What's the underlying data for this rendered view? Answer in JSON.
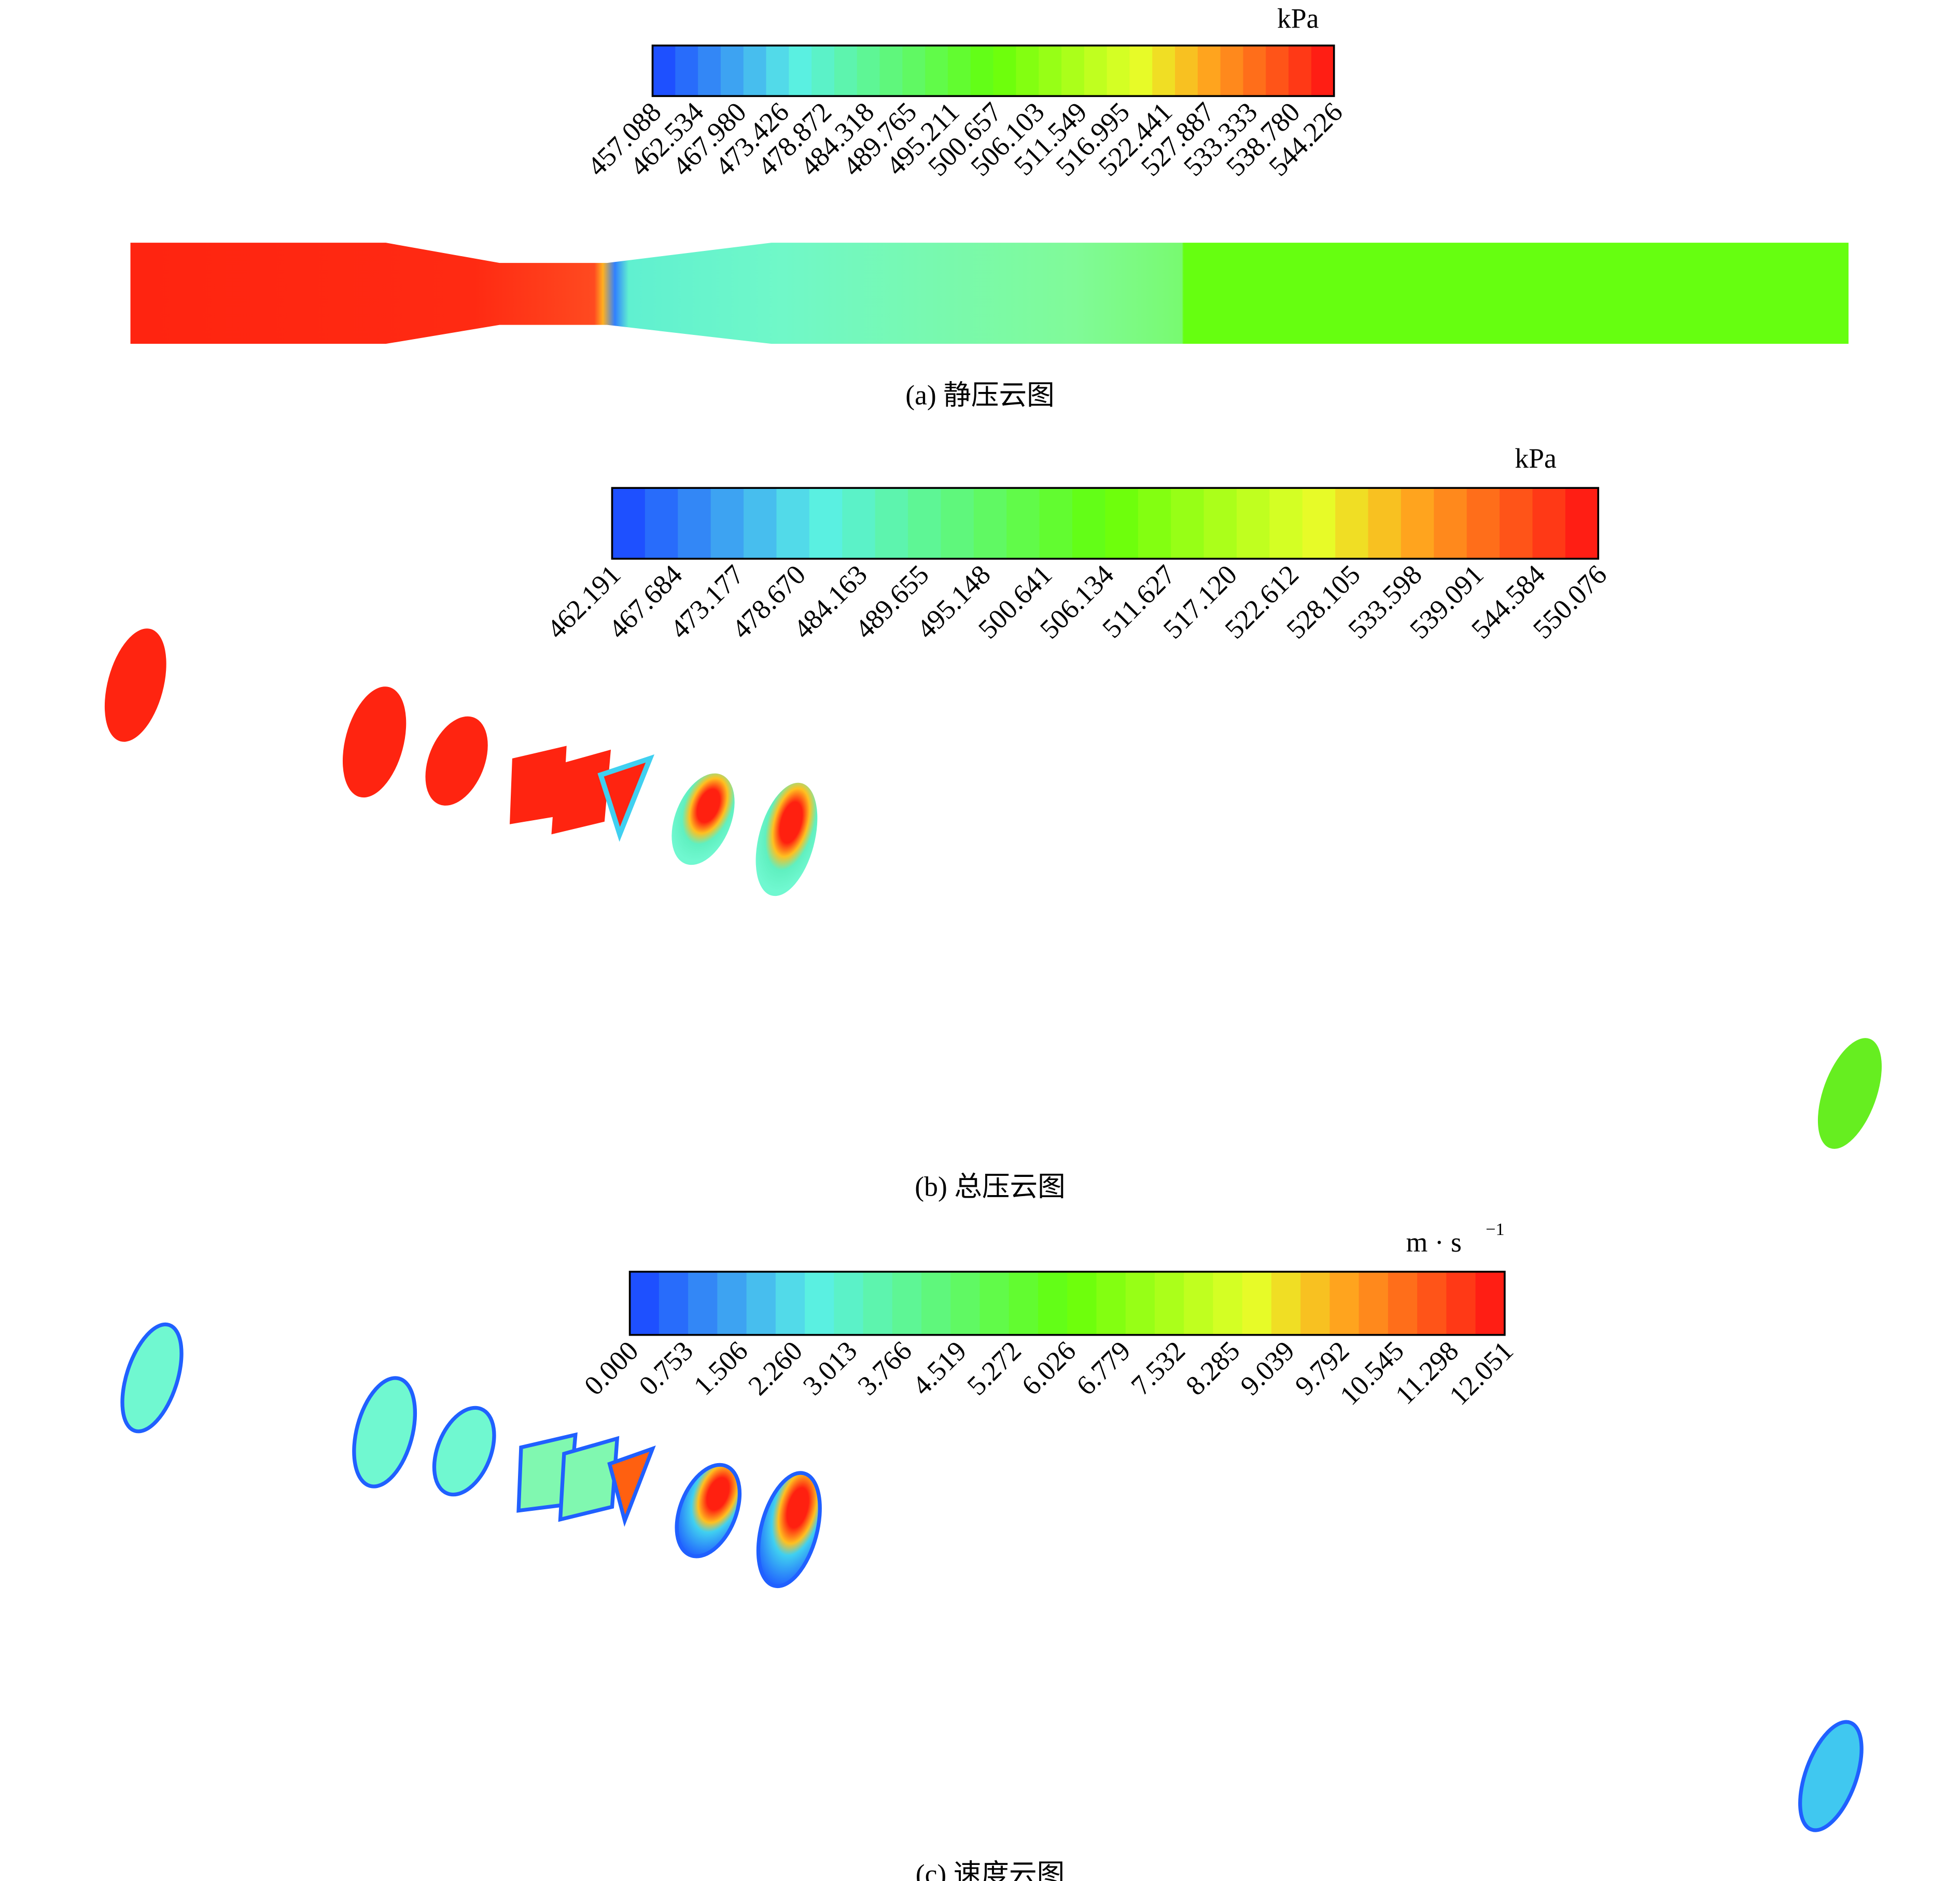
{
  "panels": [
    {
      "unit": "kPa",
      "labels": [
        "457.088",
        "462.534",
        "467.980",
        "473.426",
        "478.872",
        "484.318",
        "489.765",
        "495.211",
        "500.657",
        "506.103",
        "511.549",
        "516.995",
        "522.441",
        "527.887",
        "533.333",
        "538.780",
        "544.226"
      ],
      "caption": "(a) 静压云图"
    },
    {
      "unit": "kPa",
      "labels": [
        "462.191",
        "467.684",
        "473.177",
        "478.670",
        "484.163",
        "489.655",
        "495.148",
        "500.641",
        "506.134",
        "511.627",
        "517.120",
        "522.612",
        "528.105",
        "533.598",
        "539.091",
        "544.584",
        "550.076"
      ],
      "caption": "(b) 总压云图"
    },
    {
      "unit": "m · s",
      "unit_exponent": "−1",
      "labels": [
        "0.000",
        "0.753",
        "1.506",
        "2.260",
        "3.013",
        "3.766",
        "4.519",
        "5.272",
        "6.026",
        "6.779",
        "7.532",
        "8.285",
        "9.039",
        "9.792",
        "10.545",
        "11.298",
        "12.051"
      ],
      "caption": "(c) 速度云图"
    }
  ]
}
